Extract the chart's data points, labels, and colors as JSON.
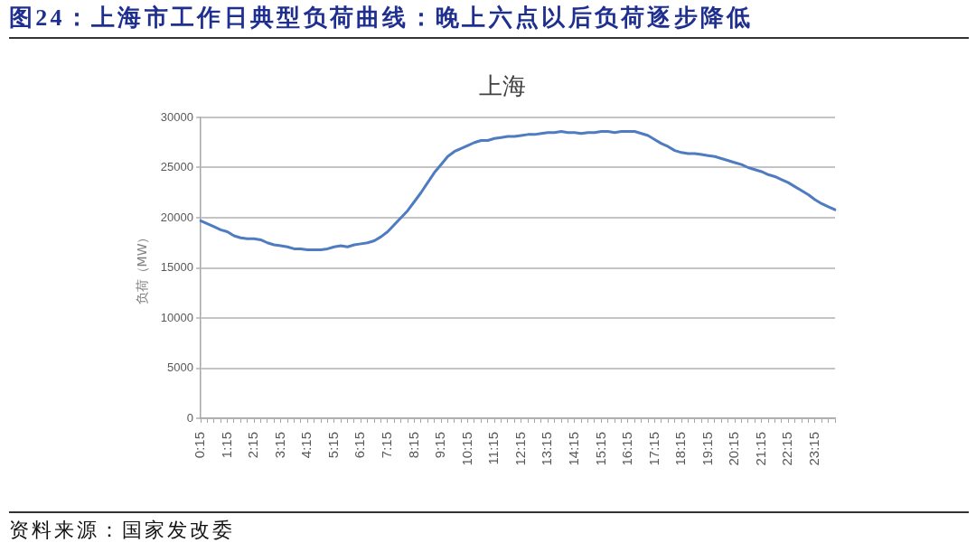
{
  "chart_data": {
    "type": "line",
    "title": "图24：上海市工作日典型负荷曲线：晚上六点以后负荷逐步降低",
    "subtitle": "上海",
    "ylabel": "负荷（MW）",
    "annotations": [
      "资料来源：国家发改委"
    ],
    "categories": [
      "0:15",
      null,
      null,
      null,
      "1:15",
      null,
      null,
      null,
      "2:15",
      null,
      null,
      null,
      "3:15",
      null,
      null,
      null,
      "4:15",
      null,
      null,
      null,
      "5:15",
      null,
      null,
      null,
      "6:15",
      null,
      null,
      null,
      "7:15",
      null,
      null,
      null,
      "8:15",
      null,
      null,
      null,
      "9:15",
      null,
      null,
      null,
      "10:15",
      null,
      null,
      null,
      "11:15",
      null,
      null,
      null,
      "12:15",
      null,
      null,
      null,
      "13:15",
      null,
      null,
      null,
      "14:15",
      null,
      null,
      null,
      "15:15",
      null,
      null,
      null,
      "16:15",
      null,
      null,
      null,
      "17:15",
      null,
      null,
      null,
      "18:15",
      null,
      null,
      null,
      "19:15",
      null,
      null,
      null,
      "20:15",
      null,
      null,
      null,
      "21:15",
      null,
      null,
      null,
      "22:15",
      null,
      null,
      null,
      "23:15",
      null,
      null,
      null
    ],
    "values": [
      19700,
      19400,
      19100,
      18800,
      18600,
      18200,
      18000,
      17900,
      17900,
      17800,
      17500,
      17300,
      17200,
      17100,
      16900,
      16900,
      16800,
      16800,
      16800,
      16900,
      17100,
      17200,
      17100,
      17300,
      17400,
      17500,
      17700,
      18100,
      18600,
      19300,
      20000,
      20700,
      21600,
      22500,
      23500,
      24500,
      25300,
      26100,
      26600,
      26900,
      27200,
      27500,
      27700,
      27700,
      27900,
      28000,
      28100,
      28100,
      28200,
      28300,
      28300,
      28400,
      28500,
      28500,
      28600,
      28500,
      28500,
      28400,
      28500,
      28500,
      28600,
      28600,
      28500,
      28600,
      28600,
      28600,
      28400,
      28200,
      27800,
      27400,
      27100,
      26700,
      26500,
      26400,
      26400,
      26300,
      26200,
      26100,
      25900,
      25700,
      25500,
      25300,
      25000,
      24800,
      24600,
      24300,
      24100,
      23800,
      23500,
      23100,
      22700,
      22300,
      21800,
      21400,
      21100,
      20800
    ],
    "color": "#4f7cc0",
    "marker": "none",
    "ylim": [
      0,
      30000
    ],
    "yticks": [
      0,
      5000,
      10000,
      15000,
      20000,
      25000,
      30000
    ],
    "grid": "y"
  }
}
